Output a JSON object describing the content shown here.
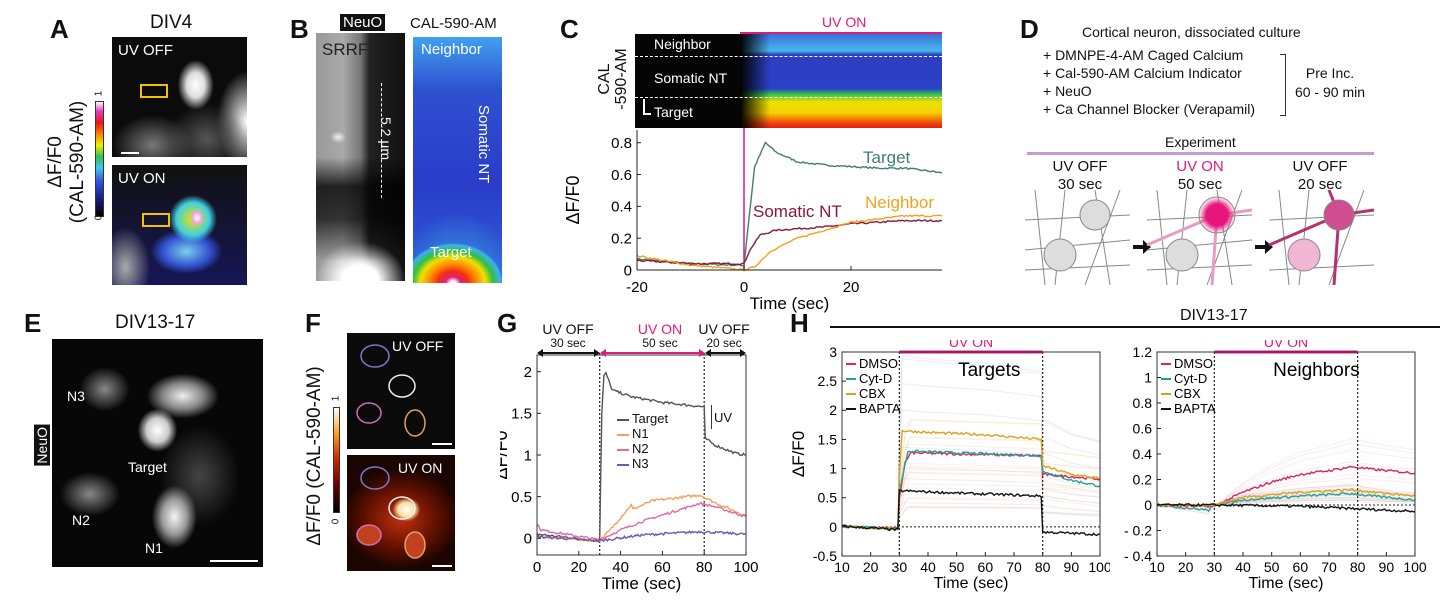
{
  "panels": {
    "A": {
      "label": "A",
      "title": "DIV4",
      "top_image_label": "UV OFF",
      "bottom_image_label": "UV ON",
      "colorbar_label_line1": "ΔF/F0",
      "colorbar_label_line2": "(CAL-590-AM)",
      "colorbar_min": "0",
      "colorbar_max": "1"
    },
    "B": {
      "label": "B",
      "left_title": "NeuO",
      "left_image_label": "SRRF",
      "scale_text": "5.2 µm",
      "right_title": "CAL-590-AM",
      "right_labels": {
        "neighbor": "Neighbor",
        "somatic": "Somatic NT",
        "target": "Target"
      }
    },
    "C": {
      "label": "C",
      "uv_label": "UV ON",
      "heatmap_ylabel_line1": "CAL",
      "heatmap_ylabel_line2": "-590-AM",
      "heatmap_rows": [
        "Neighbor",
        "Somatic NT",
        "Target"
      ]
    },
    "D": {
      "label": "D",
      "heading": "Cortical neuron, dissociated culture",
      "reagents": [
        "+ DMNPE-4-AM Caged Calcium",
        "+ Cal-590-AM Calcium Indicator",
        "+ NeuO",
        "+ Ca Channel Blocker (Verapamil)"
      ],
      "preinc_line1": "Pre Inc.",
      "preinc_line2": "60 - 90 min",
      "experiment_label": "Experiment",
      "steps": [
        {
          "state": "UV OFF",
          "duration": "30 sec"
        },
        {
          "state": "UV ON",
          "duration": "50 sec"
        },
        {
          "state": "UV OFF",
          "duration": "20 sec"
        }
      ]
    },
    "E": {
      "label": "E",
      "title": "DIV13-17",
      "stain_label": "NeuO",
      "cells": {
        "n3": "N3",
        "target": "Target",
        "n2": "N2",
        "n1": "N1"
      }
    },
    "F": {
      "label": "F",
      "top_image_label": "UV OFF",
      "bottom_image_label": "UV ON",
      "colorbar_label": "ΔF/F0 (CAL-590-AM)",
      "colorbar_min": "0",
      "colorbar_max": "1"
    },
    "G": {
      "label": "G",
      "phases": [
        {
          "state": "UV OFF",
          "duration": "30 sec"
        },
        {
          "state": "UV ON",
          "duration": "50 sec"
        },
        {
          "state": "UV OFF",
          "duration": "20 sec"
        }
      ],
      "uv_scale_label": "UV"
    },
    "H": {
      "label": "H",
      "group_title": "DIV13-17"
    }
  },
  "colors": {
    "uv_magenta": "#e0197d",
    "target_green": "#3f7f6e",
    "somatic_red": "#8c1838",
    "neighbor_orange": "#f0a21e",
    "g_target": "#555555",
    "g_n1": "#f2a25a",
    "g_n2": "#e06aa8",
    "g_n3": "#6a5bb0",
    "dmso": "#e0245a",
    "cytd": "#1fa394",
    "cbx": "#d9a31c",
    "bapta": "#111111"
  },
  "chart_data": [
    {
      "id": "C",
      "type": "line",
      "title": "",
      "xlabel": "Time (sec)",
      "ylabel": "ΔF/F0",
      "xlim": [
        -20,
        37
      ],
      "ylim": [
        0,
        0.88
      ],
      "xticks": [
        -20,
        0,
        20
      ],
      "xtick_labels": [
        "-20",
        "0",
        "20"
      ],
      "yticks": [
        0,
        0.2,
        0.4,
        0.6,
        0.8
      ],
      "ytick_labels": [
        "0",
        "0.2",
        "0.4",
        "0.6",
        "0.8"
      ],
      "markers": [
        0
      ],
      "uv_on": [
        0,
        37
      ],
      "series": [
        {
          "name": "Target",
          "color": "#3f7f6e",
          "points": [
            [
              -20,
              0.07
            ],
            [
              -10,
              0.04
            ],
            [
              -1,
              0.03
            ],
            [
              0,
              0.03
            ],
            [
              1,
              0.35
            ],
            [
              2,
              0.65
            ],
            [
              4,
              0.8
            ],
            [
              6,
              0.74
            ],
            [
              10,
              0.68
            ],
            [
              15,
              0.66
            ],
            [
              20,
              0.65
            ],
            [
              25,
              0.64
            ],
            [
              30,
              0.64
            ],
            [
              35,
              0.62
            ],
            [
              37,
              0.61
            ]
          ]
        },
        {
          "name": "Somatic NT",
          "color": "#8c1838",
          "points": [
            [
              -20,
              0.06
            ],
            [
              -10,
              0.04
            ],
            [
              0,
              0.04
            ],
            [
              1,
              0.12
            ],
            [
              3,
              0.22
            ],
            [
              6,
              0.25
            ],
            [
              10,
              0.26
            ],
            [
              15,
              0.27
            ],
            [
              20,
              0.29
            ],
            [
              30,
              0.31
            ],
            [
              37,
              0.31
            ]
          ]
        },
        {
          "name": "Neighbor",
          "color": "#f0a21e",
          "points": [
            [
              -20,
              0.09
            ],
            [
              -10,
              0.03
            ],
            [
              -3,
              0.01
            ],
            [
              0,
              0.0
            ],
            [
              2,
              0.02
            ],
            [
              5,
              0.12
            ],
            [
              10,
              0.2
            ],
            [
              15,
              0.25
            ],
            [
              20,
              0.3
            ],
            [
              30,
              0.34
            ],
            [
              37,
              0.34
            ]
          ]
        }
      ]
    },
    {
      "id": "G",
      "type": "line",
      "title": "",
      "xlabel": "Time (sec)",
      "ylabel": "ΔF/F0",
      "xlim": [
        0,
        100
      ],
      "ylim": [
        -0.2,
        2.2
      ],
      "xticks": [
        0,
        20,
        40,
        60,
        80,
        100
      ],
      "xtick_labels": [
        "0",
        "20",
        "40",
        "60",
        "80",
        "100"
      ],
      "yticks": [
        0,
        0.5,
        1,
        1.5,
        2
      ],
      "ytick_labels": [
        "0",
        "0.5",
        "1",
        "1.5",
        "2"
      ],
      "markers": [
        30,
        80
      ],
      "legend": "center",
      "series": [
        {
          "name": "Target",
          "color": "#555555",
          "points": [
            [
              0,
              0.05
            ],
            [
              29,
              -0.03
            ],
            [
              30,
              -0.03
            ],
            [
              31,
              1.5
            ],
            [
              32,
              1.95
            ],
            [
              33,
              1.98
            ],
            [
              36,
              1.78
            ],
            [
              45,
              1.7
            ],
            [
              60,
              1.63
            ],
            [
              79,
              1.58
            ],
            [
              80,
              1.58
            ],
            [
              80.5,
              1.2
            ],
            [
              85,
              1.12
            ],
            [
              95,
              1.02
            ],
            [
              100,
              1.0
            ]
          ]
        },
        {
          "name": "N1",
          "color": "#f2a25a",
          "points": [
            [
              0,
              0.02
            ],
            [
              30,
              -0.03
            ],
            [
              35,
              0.1
            ],
            [
              45,
              0.4
            ],
            [
              46,
              0.35
            ],
            [
              55,
              0.45
            ],
            [
              65,
              0.48
            ],
            [
              78,
              0.52
            ],
            [
              85,
              0.43
            ],
            [
              100,
              0.27
            ]
          ]
        },
        {
          "name": "N2",
          "color": "#e06aa8",
          "points": [
            [
              0,
              0.17
            ],
            [
              2,
              0.1
            ],
            [
              30,
              -0.02
            ],
            [
              40,
              0.1
            ],
            [
              50,
              0.2
            ],
            [
              60,
              0.28
            ],
            [
              78,
              0.42
            ],
            [
              85,
              0.38
            ],
            [
              100,
              0.26
            ]
          ]
        },
        {
          "name": "N3",
          "color": "#6a5bb0",
          "points": [
            [
              0,
              0.02
            ],
            [
              30,
              -0.03
            ],
            [
              50,
              0.04
            ],
            [
              78,
              0.08
            ],
            [
              100,
              0.05
            ]
          ]
        }
      ]
    },
    {
      "id": "H-targets",
      "type": "line",
      "title": "Targets",
      "uv_label": "UV ON",
      "xlabel": "Time (sec)",
      "ylabel": "ΔF/F0",
      "xlim": [
        10,
        100
      ],
      "ylim": [
        -0.5,
        3
      ],
      "xticks": [
        10,
        20,
        30,
        40,
        50,
        60,
        70,
        80,
        90,
        100
      ],
      "xtick_labels": [
        "10",
        "20",
        "30",
        "40",
        "50",
        "60",
        "70",
        "80",
        "90",
        "100"
      ],
      "yticks": [
        -0.5,
        0,
        0.5,
        1,
        1.5,
        2,
        2.5,
        3
      ],
      "ytick_labels": [
        "-0.5",
        "0",
        "0.5",
        "1",
        "1.5",
        "2",
        "2.5",
        "3"
      ],
      "markers": [
        30,
        80
      ],
      "uv_on": [
        30,
        80
      ],
      "zero_line": true,
      "legend": "top-left",
      "series": [
        {
          "name": "DMSO",
          "color": "#e0245a",
          "points": [
            [
              10,
              0.01
            ],
            [
              29.5,
              -0.03
            ],
            [
              30,
              0.5
            ],
            [
              32,
              1.1
            ],
            [
              34,
              1.27
            ],
            [
              50,
              1.25
            ],
            [
              79.5,
              1.22
            ],
            [
              80,
              0.9
            ],
            [
              90,
              0.86
            ],
            [
              100,
              0.82
            ]
          ]
        },
        {
          "name": "Cyt-D",
          "color": "#1fa394",
          "points": [
            [
              10,
              0.01
            ],
            [
              29.5,
              -0.03
            ],
            [
              30,
              0.6
            ],
            [
              33,
              1.3
            ],
            [
              50,
              1.27
            ],
            [
              79.5,
              1.22
            ],
            [
              80,
              0.95
            ],
            [
              90,
              0.8
            ],
            [
              100,
              0.7
            ]
          ]
        },
        {
          "name": "CBX",
          "color": "#d9a31c",
          "points": [
            [
              10,
              0.0
            ],
            [
              29.5,
              -0.03
            ],
            [
              30,
              0.9
            ],
            [
              31,
              1.65
            ],
            [
              40,
              1.62
            ],
            [
              60,
              1.58
            ],
            [
              79.5,
              1.5
            ],
            [
              80,
              1.05
            ],
            [
              90,
              0.9
            ],
            [
              100,
              0.83
            ]
          ]
        },
        {
          "name": "BAPTA",
          "color": "#111111",
          "points": [
            [
              10,
              0.01
            ],
            [
              29.5,
              -0.05
            ],
            [
              30,
              0.62
            ],
            [
              50,
              0.58
            ],
            [
              79.5,
              0.53
            ],
            [
              80,
              -0.09
            ],
            [
              100,
              -0.13
            ]
          ]
        }
      ]
    },
    {
      "id": "H-neighbors",
      "type": "line",
      "title": "Neighbors",
      "uv_label": "UV ON",
      "xlabel": "Time (sec)",
      "ylabel": "",
      "xlim": [
        10,
        100
      ],
      "ylim": [
        -0.4,
        1.2
      ],
      "xticks": [
        10,
        20,
        30,
        40,
        50,
        60,
        70,
        80,
        90,
        100
      ],
      "xtick_labels": [
        "10",
        "20",
        "30",
        "40",
        "50",
        "60",
        "70",
        "80",
        "90",
        "100"
      ],
      "yticks": [
        -0.4,
        -0.2,
        0,
        0.2,
        0.4,
        0.6,
        0.8,
        1,
        1.2
      ],
      "ytick_labels": [
        "- 0.4",
        "- 0.2",
        "0",
        "0.2",
        "0.4",
        "0.6",
        "0.8",
        "1",
        "1.2"
      ],
      "markers": [
        30,
        80
      ],
      "uv_on": [
        30,
        80
      ],
      "zero_line": true,
      "legend": "top-left",
      "series": [
        {
          "name": "DMSO",
          "color": "#e0245a",
          "points": [
            [
              10,
              0
            ],
            [
              30,
              -0.01
            ],
            [
              40,
              0.1
            ],
            [
              50,
              0.18
            ],
            [
              60,
              0.24
            ],
            [
              70,
              0.27
            ],
            [
              78,
              0.3
            ],
            [
              85,
              0.28
            ],
            [
              100,
              0.25
            ]
          ]
        },
        {
          "name": "Cyt-D",
          "color": "#1fa394",
          "points": [
            [
              10,
              0
            ],
            [
              28,
              -0.04
            ],
            [
              30,
              0
            ],
            [
              40,
              0.04
            ],
            [
              60,
              0.07
            ],
            [
              78,
              0.09
            ],
            [
              85,
              0.07
            ],
            [
              100,
              0.04
            ]
          ]
        },
        {
          "name": "CBX",
          "color": "#d9a31c",
          "points": [
            [
              10,
              0
            ],
            [
              30,
              0
            ],
            [
              40,
              0.06
            ],
            [
              60,
              0.1
            ],
            [
              78,
              0.12
            ],
            [
              85,
              0.1
            ],
            [
              100,
              0.07
            ]
          ]
        },
        {
          "name": "BAPTA",
          "color": "#111111",
          "points": [
            [
              10,
              0
            ],
            [
              30,
              0
            ],
            [
              60,
              -0.01
            ],
            [
              80,
              -0.03
            ],
            [
              100,
              -0.05
            ]
          ]
        }
      ]
    }
  ]
}
